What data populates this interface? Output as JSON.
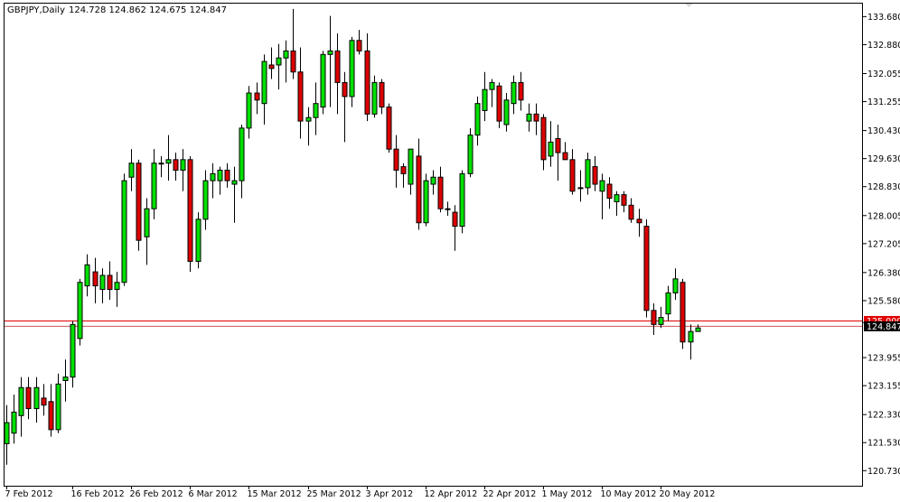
{
  "header": {
    "symbol": "GBPJPY,Daily",
    "ohlc": "124.728 124.862 124.675 124.847"
  },
  "colors": {
    "bull": "#00e000",
    "bear": "#dd0000",
    "wick": "#000000",
    "price_line": "#e00000",
    "bid_line": "#cc5555",
    "frame": "#000000"
  },
  "chart_data": {
    "type": "candlestick",
    "title": "GBPJPY,Daily",
    "ylim": [
      120.3,
      134.05
    ],
    "y_ticks": [
      "133.680",
      "132.880",
      "132.055",
      "131.255",
      "130.430",
      "129.630",
      "128.830",
      "128.005",
      "127.205",
      "126.380",
      "125.580",
      "124.955",
      "123.955",
      "123.155",
      "122.330",
      "121.530",
      "120.730"
    ],
    "x_ticks": [
      {
        "index": 0,
        "label": "7 Feb 2012"
      },
      {
        "index": 9,
        "label": "16 Feb 2012"
      },
      {
        "index": 17,
        "label": "26 Feb 2012"
      },
      {
        "index": 25,
        "label": "6 Mar 2012"
      },
      {
        "index": 33,
        "label": "15 Mar 2012"
      },
      {
        "index": 41,
        "label": "25 Mar 2012"
      },
      {
        "index": 49,
        "label": "3 Apr 2012"
      },
      {
        "index": 57,
        "label": "12 Apr 2012"
      },
      {
        "index": 65,
        "label": "22 Apr 2012"
      },
      {
        "index": 73,
        "label": "1 May 2012"
      },
      {
        "index": 81,
        "label": "10 May 2012"
      },
      {
        "index": 89,
        "label": "20 May 2012"
      }
    ],
    "price_tags": {
      "level": {
        "label": "125.000",
        "value": 125.0
      },
      "current": {
        "label": "124.847",
        "value": 124.847
      }
    },
    "candles": [
      {
        "o": 121.5,
        "h": 122.6,
        "l": 120.9,
        "c": 122.1
      },
      {
        "o": 121.8,
        "h": 122.9,
        "l": 121.5,
        "c": 122.4
      },
      {
        "o": 122.3,
        "h": 123.4,
        "l": 121.7,
        "c": 123.1
      },
      {
        "o": 123.1,
        "h": 123.4,
        "l": 122.2,
        "c": 122.5
      },
      {
        "o": 122.5,
        "h": 123.4,
        "l": 122.1,
        "c": 123.1
      },
      {
        "o": 122.8,
        "h": 123.2,
        "l": 122.3,
        "c": 122.6
      },
      {
        "o": 122.7,
        "h": 123.2,
        "l": 121.7,
        "c": 121.9
      },
      {
        "o": 121.9,
        "h": 123.5,
        "l": 121.8,
        "c": 123.2
      },
      {
        "o": 123.3,
        "h": 123.9,
        "l": 122.7,
        "c": 123.4
      },
      {
        "o": 123.4,
        "h": 125.0,
        "l": 123.1,
        "c": 124.9
      },
      {
        "o": 124.5,
        "h": 126.2,
        "l": 124.3,
        "c": 126.1
      },
      {
        "o": 126.0,
        "h": 126.9,
        "l": 125.7,
        "c": 126.6
      },
      {
        "o": 126.4,
        "h": 126.8,
        "l": 125.5,
        "c": 126.0
      },
      {
        "o": 125.9,
        "h": 126.5,
        "l": 125.5,
        "c": 126.3
      },
      {
        "o": 126.3,
        "h": 126.7,
        "l": 125.6,
        "c": 125.9
      },
      {
        "o": 125.9,
        "h": 126.4,
        "l": 125.4,
        "c": 126.1
      },
      {
        "o": 126.1,
        "h": 129.2,
        "l": 126.0,
        "c": 129.0
      },
      {
        "o": 129.1,
        "h": 129.9,
        "l": 128.7,
        "c": 129.5
      },
      {
        "o": 129.5,
        "h": 129.6,
        "l": 127.0,
        "c": 127.3
      },
      {
        "o": 127.4,
        "h": 128.5,
        "l": 126.6,
        "c": 128.2
      },
      {
        "o": 128.2,
        "h": 129.9,
        "l": 127.9,
        "c": 129.5
      },
      {
        "o": 129.5,
        "h": 129.7,
        "l": 129.1,
        "c": 129.5
      },
      {
        "o": 129.5,
        "h": 130.3,
        "l": 129.0,
        "c": 129.6
      },
      {
        "o": 129.6,
        "h": 129.8,
        "l": 129.0,
        "c": 129.3
      },
      {
        "o": 129.3,
        "h": 129.9,
        "l": 128.7,
        "c": 129.6
      },
      {
        "o": 129.6,
        "h": 129.7,
        "l": 126.4,
        "c": 126.7
      },
      {
        "o": 126.7,
        "h": 128.1,
        "l": 126.5,
        "c": 127.9
      },
      {
        "o": 127.9,
        "h": 129.3,
        "l": 127.6,
        "c": 129.0
      },
      {
        "o": 129.0,
        "h": 129.5,
        "l": 128.5,
        "c": 129.2
      },
      {
        "o": 129.0,
        "h": 129.4,
        "l": 128.6,
        "c": 129.3
      },
      {
        "o": 129.3,
        "h": 129.5,
        "l": 128.8,
        "c": 129.0
      },
      {
        "o": 128.9,
        "h": 129.4,
        "l": 127.8,
        "c": 129.0
      },
      {
        "o": 129.0,
        "h": 130.6,
        "l": 128.5,
        "c": 130.5
      },
      {
        "o": 130.5,
        "h": 131.7,
        "l": 130.2,
        "c": 131.5
      },
      {
        "o": 131.5,
        "h": 131.8,
        "l": 130.9,
        "c": 131.3
      },
      {
        "o": 131.2,
        "h": 132.6,
        "l": 130.6,
        "c": 132.4
      },
      {
        "o": 132.3,
        "h": 132.8,
        "l": 131.9,
        "c": 132.2
      },
      {
        "o": 132.3,
        "h": 132.9,
        "l": 131.6,
        "c": 132.5
      },
      {
        "o": 132.5,
        "h": 133.0,
        "l": 131.8,
        "c": 132.7
      },
      {
        "o": 132.7,
        "h": 133.9,
        "l": 131.9,
        "c": 132.1
      },
      {
        "o": 132.1,
        "h": 132.8,
        "l": 130.2,
        "c": 130.7
      },
      {
        "o": 130.7,
        "h": 131.1,
        "l": 130.0,
        "c": 130.8
      },
      {
        "o": 130.8,
        "h": 131.8,
        "l": 130.3,
        "c": 131.2
      },
      {
        "o": 131.1,
        "h": 132.7,
        "l": 130.9,
        "c": 132.6
      },
      {
        "o": 132.6,
        "h": 133.7,
        "l": 131.1,
        "c": 132.7
      },
      {
        "o": 132.7,
        "h": 133.2,
        "l": 130.9,
        "c": 131.8
      },
      {
        "o": 131.8,
        "h": 132.1,
        "l": 130.1,
        "c": 131.4
      },
      {
        "o": 131.4,
        "h": 133.1,
        "l": 131.1,
        "c": 133.0
      },
      {
        "o": 133.0,
        "h": 133.3,
        "l": 132.6,
        "c": 132.7
      },
      {
        "o": 132.7,
        "h": 133.2,
        "l": 130.7,
        "c": 130.9
      },
      {
        "o": 130.9,
        "h": 132.0,
        "l": 130.8,
        "c": 131.8
      },
      {
        "o": 131.8,
        "h": 131.9,
        "l": 130.9,
        "c": 131.1
      },
      {
        "o": 131.1,
        "h": 131.2,
        "l": 129.8,
        "c": 129.9
      },
      {
        "o": 129.9,
        "h": 130.3,
        "l": 128.8,
        "c": 129.3
      },
      {
        "o": 129.4,
        "h": 129.5,
        "l": 128.8,
        "c": 129.2
      },
      {
        "o": 128.9,
        "h": 129.9,
        "l": 128.6,
        "c": 129.9
      },
      {
        "o": 129.7,
        "h": 130.2,
        "l": 127.6,
        "c": 127.8
      },
      {
        "o": 127.8,
        "h": 129.2,
        "l": 127.7,
        "c": 129.0
      },
      {
        "o": 128.9,
        "h": 129.3,
        "l": 128.6,
        "c": 129.1
      },
      {
        "o": 129.1,
        "h": 129.4,
        "l": 128.1,
        "c": 128.2
      },
      {
        "o": 128.2,
        "h": 128.4,
        "l": 128.0,
        "c": 128.2
      },
      {
        "o": 128.1,
        "h": 128.3,
        "l": 127.0,
        "c": 127.7
      },
      {
        "o": 127.7,
        "h": 129.3,
        "l": 127.5,
        "c": 129.2
      },
      {
        "o": 129.2,
        "h": 130.5,
        "l": 129.1,
        "c": 130.3
      },
      {
        "o": 130.3,
        "h": 131.4,
        "l": 130.0,
        "c": 131.2
      },
      {
        "o": 131.0,
        "h": 132.1,
        "l": 130.7,
        "c": 131.6
      },
      {
        "o": 131.6,
        "h": 131.9,
        "l": 131.1,
        "c": 131.8
      },
      {
        "o": 131.7,
        "h": 131.8,
        "l": 130.5,
        "c": 130.7
      },
      {
        "o": 130.6,
        "h": 131.5,
        "l": 130.4,
        "c": 131.3
      },
      {
        "o": 131.2,
        "h": 132.0,
        "l": 130.9,
        "c": 131.8
      },
      {
        "o": 131.8,
        "h": 132.1,
        "l": 131.0,
        "c": 131.3
      },
      {
        "o": 130.7,
        "h": 131.2,
        "l": 130.4,
        "c": 130.9
      },
      {
        "o": 130.9,
        "h": 131.2,
        "l": 130.3,
        "c": 130.7
      },
      {
        "o": 130.8,
        "h": 130.9,
        "l": 129.3,
        "c": 129.6
      },
      {
        "o": 129.7,
        "h": 130.7,
        "l": 129.4,
        "c": 130.1
      },
      {
        "o": 130.2,
        "h": 130.6,
        "l": 129.0,
        "c": 129.8
      },
      {
        "o": 129.8,
        "h": 130.1,
        "l": 129.6,
        "c": 129.6
      },
      {
        "o": 129.6,
        "h": 129.9,
        "l": 128.6,
        "c": 128.7
      },
      {
        "o": 128.8,
        "h": 129.3,
        "l": 128.4,
        "c": 128.8
      },
      {
        "o": 128.8,
        "h": 129.8,
        "l": 128.6,
        "c": 129.6
      },
      {
        "o": 129.4,
        "h": 129.7,
        "l": 128.7,
        "c": 128.9
      },
      {
        "o": 128.7,
        "h": 129.2,
        "l": 127.9,
        "c": 129.0
      },
      {
        "o": 128.9,
        "h": 129.1,
        "l": 128.2,
        "c": 128.5
      },
      {
        "o": 128.4,
        "h": 128.7,
        "l": 128.0,
        "c": 128.6
      },
      {
        "o": 128.6,
        "h": 128.7,
        "l": 128.1,
        "c": 128.3
      },
      {
        "o": 128.3,
        "h": 128.5,
        "l": 127.8,
        "c": 127.9
      },
      {
        "o": 127.9,
        "h": 128.2,
        "l": 127.4,
        "c": 127.8
      },
      {
        "o": 127.7,
        "h": 127.9,
        "l": 125.1,
        "c": 125.3
      },
      {
        "o": 125.3,
        "h": 125.5,
        "l": 124.6,
        "c": 124.9
      },
      {
        "o": 124.9,
        "h": 125.4,
        "l": 124.8,
        "c": 125.1
      },
      {
        "o": 125.2,
        "h": 126.0,
        "l": 125.0,
        "c": 125.8
      },
      {
        "o": 125.8,
        "h": 126.5,
        "l": 125.6,
        "c": 126.2
      },
      {
        "o": 126.1,
        "h": 126.2,
        "l": 124.2,
        "c": 124.4
      },
      {
        "o": 124.4,
        "h": 124.9,
        "l": 123.9,
        "c": 124.7
      },
      {
        "o": 124.7,
        "h": 124.9,
        "l": 124.7,
        "c": 124.8
      }
    ]
  }
}
